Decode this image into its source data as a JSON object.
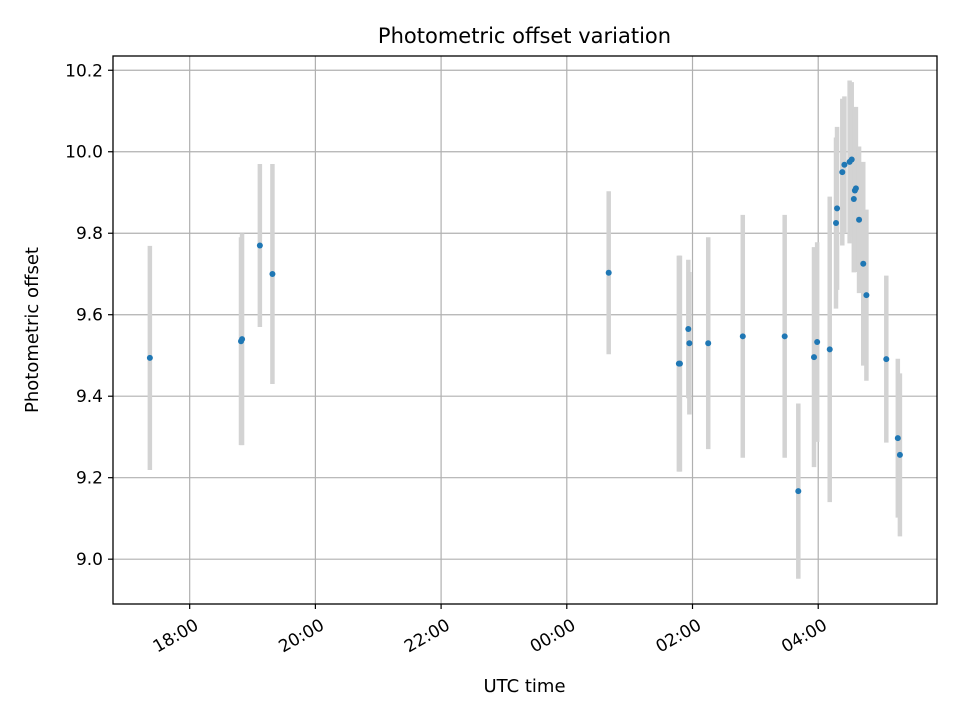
{
  "chart_data": {
    "type": "scatter",
    "title": "Photometric offset variation",
    "xlabel": "UTC time",
    "ylabel": "Photometric offset",
    "x_axis": "time",
    "x_ticks": [
      "18:00",
      "20:00",
      "22:00",
      "00:00",
      "02:00",
      "04:00"
    ],
    "x_tick_hours": [
      18,
      20,
      22,
      24,
      26,
      28
    ],
    "xlim_hours": [
      16.78,
      29.89
    ],
    "y_ticks": [
      "9.0",
      "9.2",
      "9.4",
      "9.6",
      "9.8",
      "10.0",
      "10.2"
    ],
    "y_tick_values": [
      9.0,
      9.2,
      9.4,
      9.6,
      9.8,
      10.0,
      10.2
    ],
    "ylim": [
      8.89,
      10.235
    ],
    "grid": true,
    "marker_color": "#1f77b4",
    "errorbar_color": "#d3d3d3",
    "points": [
      {
        "t": "17:22",
        "y": 9.494,
        "err": 0.275
      },
      {
        "t": "18:49",
        "y": 9.535,
        "err": 0.255
      },
      {
        "t": "18:50",
        "y": 9.54,
        "err": 0.26
      },
      {
        "t": "19:07",
        "y": 9.77,
        "err": 0.2
      },
      {
        "t": "19:19",
        "y": 9.7,
        "err": 0.27
      },
      {
        "t": "00:40",
        "y": 9.703,
        "err": 0.2
      },
      {
        "t": "01:47",
        "y": 9.48,
        "err": 0.265
      },
      {
        "t": "01:48",
        "y": 9.48,
        "err": 0.265
      },
      {
        "t": "01:56",
        "y": 9.565,
        "err": 0.17
      },
      {
        "t": "01:57",
        "y": 9.53,
        "err": 0.175
      },
      {
        "t": "02:15",
        "y": 9.53,
        "err": 0.26
      },
      {
        "t": "02:48",
        "y": 9.547,
        "err": 0.298
      },
      {
        "t": "03:28",
        "y": 9.547,
        "err": 0.298
      },
      {
        "t": "03:41",
        "y": 9.167,
        "err": 0.215
      },
      {
        "t": "03:56",
        "y": 9.496,
        "err": 0.27
      },
      {
        "t": "03:59",
        "y": 9.533,
        "err": 0.245
      },
      {
        "t": "04:11",
        "y": 9.515,
        "err": 0.375
      },
      {
        "t": "04:17",
        "y": 9.825,
        "err": 0.21
      },
      {
        "t": "04:18",
        "y": 9.861,
        "err": 0.2
      },
      {
        "t": "04:23",
        "y": 9.95,
        "err": 0.18
      },
      {
        "t": "04:25",
        "y": 9.968,
        "err": 0.168
      },
      {
        "t": "04:30",
        "y": 9.975,
        "err": 0.2
      },
      {
        "t": "04:32",
        "y": 9.981,
        "err": 0.19
      },
      {
        "t": "04:34",
        "y": 9.884,
        "err": 0.18
      },
      {
        "t": "04:35",
        "y": 9.905,
        "err": 0.2
      },
      {
        "t": "04:36",
        "y": 9.91,
        "err": 0.2
      },
      {
        "t": "04:39",
        "y": 9.833,
        "err": 0.18
      },
      {
        "t": "04:43",
        "y": 9.725,
        "err": 0.25
      },
      {
        "t": "04:46",
        "y": 9.648,
        "err": 0.21
      },
      {
        "t": "05:05",
        "y": 9.491,
        "err": 0.205
      },
      {
        "t": "05:16",
        "y": 9.297,
        "err": 0.195
      },
      {
        "t": "05:18",
        "y": 9.256,
        "err": 0.2
      }
    ]
  }
}
